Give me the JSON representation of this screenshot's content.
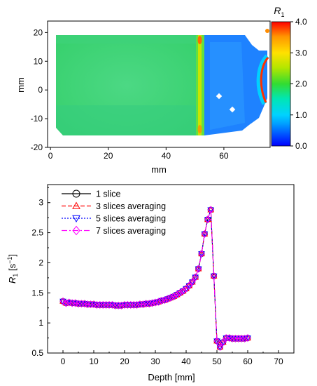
{
  "chart_data": [
    {
      "type": "heatmap",
      "xlabel": "mm",
      "ylabel": "mm",
      "xlim": [
        -1,
        76
      ],
      "ylim": [
        -20,
        24
      ],
      "x_ticks": [
        "0",
        "20",
        "40",
        "60"
      ],
      "y_ticks": [
        "20",
        "10",
        "0",
        "-10",
        "-20"
      ],
      "colorbar": {
        "label_main": "R",
        "label_sub": "1",
        "range": [
          0.0,
          4.0
        ],
        "ticks": [
          "4.0",
          "3.0",
          "2.0",
          "1.0",
          "0.0"
        ],
        "colors": [
          "#0000ff",
          "#00c8ff",
          "#00e8b4",
          "#32dc32",
          "#d2e600",
          "#ffa000",
          "#ff0000"
        ]
      },
      "regions": [
        {
          "name": "left",
          "x": [
            2,
            50
          ],
          "y": [
            -16,
            17
          ],
          "value": 1.75
        },
        {
          "name": "band",
          "x": [
            50.5,
            52.5
          ],
          "y": [
            -16,
            17
          ],
          "value": 2.5
        },
        {
          "name": "right",
          "x": [
            53,
            72
          ],
          "y": [
            -16,
            17
          ],
          "value": 0.9
        }
      ]
    },
    {
      "type": "line",
      "xlabel": "Depth [mm]",
      "ylabel_main": "R",
      "ylabel_sub": "1",
      "ylabel_unit": "[s",
      "ylabel_sup": "−1",
      "ylabel_close": "]",
      "xlim": [
        -5,
        75
      ],
      "ylim": [
        0.5,
        3.3
      ],
      "x_ticks": [
        "0",
        "10",
        "20",
        "30",
        "40",
        "50",
        "60",
        "70"
      ],
      "y_ticks": [
        "3",
        "2.5",
        "2",
        "1.5",
        "1",
        "0.5"
      ],
      "series": [
        {
          "name": "1 slice",
          "color": "#000000",
          "marker": "circle",
          "dash": ""
        },
        {
          "name": "3 slices averaging",
          "color": "#ff0000",
          "marker": "triangle-up",
          "dash": "6,3"
        },
        {
          "name": "5 slices averaging",
          "color": "#0000ff",
          "marker": "triangle-down",
          "dash": "2,2"
        },
        {
          "name": "7 slices averaging",
          "color": "#ff00ff",
          "marker": "diamond",
          "dash": "8,3,2,3"
        }
      ],
      "x": [
        0,
        1,
        2,
        3,
        4,
        5,
        6,
        7,
        8,
        9,
        10,
        11,
        12,
        13,
        14,
        15,
        16,
        17,
        18,
        19,
        20,
        21,
        22,
        23,
        24,
        25,
        26,
        27,
        28,
        29,
        30,
        31,
        32,
        33,
        34,
        35,
        36,
        37,
        38,
        39,
        40,
        41,
        42,
        43,
        44,
        45,
        46,
        47,
        48,
        49,
        50,
        51,
        52,
        53,
        54,
        55,
        56,
        57,
        58,
        59,
        60
      ],
      "y": [
        1.36,
        1.33,
        1.34,
        1.33,
        1.33,
        1.32,
        1.32,
        1.32,
        1.31,
        1.31,
        1.31,
        1.3,
        1.3,
        1.3,
        1.3,
        1.3,
        1.3,
        1.29,
        1.29,
        1.29,
        1.3,
        1.3,
        1.3,
        1.3,
        1.3,
        1.31,
        1.31,
        1.32,
        1.32,
        1.33,
        1.34,
        1.35,
        1.37,
        1.38,
        1.4,
        1.42,
        1.44,
        1.47,
        1.5,
        1.53,
        1.57,
        1.62,
        1.68,
        1.76,
        1.9,
        2.15,
        2.48,
        2.72,
        2.88,
        1.78,
        0.7,
        0.6,
        0.68,
        0.75,
        0.75,
        0.74,
        0.74,
        0.74,
        0.74,
        0.74,
        0.75
      ]
    }
  ]
}
